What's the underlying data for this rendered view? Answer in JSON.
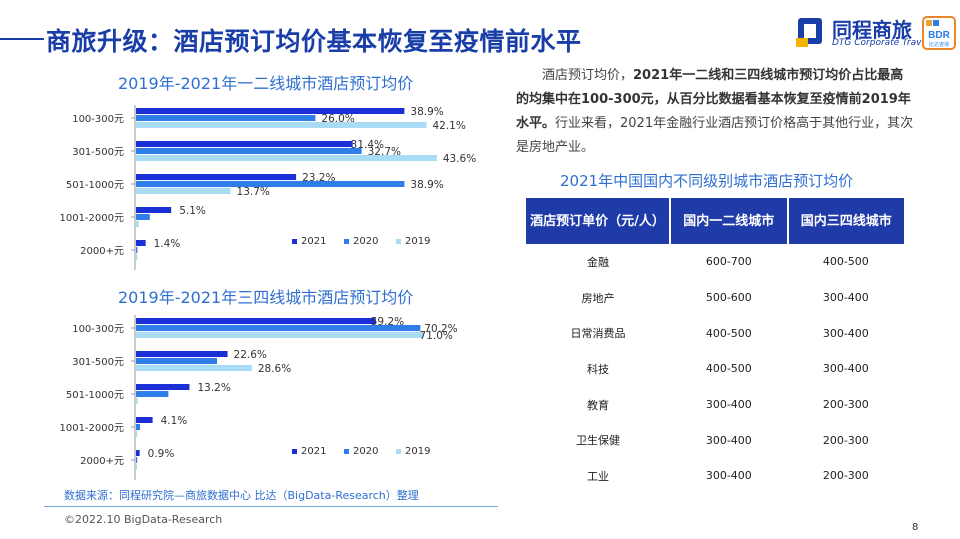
{
  "slide": {
    "title": "商旅升级：酒店预订均价基本恢复至疫情前水平",
    "logo_cn": "同程商旅",
    "logo_en": "DTG Corporate Travel",
    "logo_badge": "BDR",
    "logo_badge_sub": "比达咨询",
    "description_lead": "酒店预订均价，",
    "description_bold": "2021年一二线和三四线城市预订均价占比最高的均集中在100-300元，从百分比数据看基本恢复至疫情前2019年水平。",
    "description_tail": "行业来看，2021年金融行业酒店预订价格高于其他行业，其次是房地产业。",
    "source": "数据来源：同程研究院—商旅数据中心 比达（BigData-Research）整理",
    "copyright": "©2022.10 BigData-Research",
    "page_number": "8"
  },
  "colors": {
    "s2021": "#1b2fd6",
    "s2020": "#2d7ee8",
    "s2019": "#a8dcf5",
    "brand": "#1a3ea8"
  },
  "chart_data": [
    {
      "type": "bar",
      "orientation": "horizontal",
      "title": "2019年-2021年一二线城市酒店预订均价",
      "categories": [
        "100-300元",
        "301-500元",
        "501-1000元",
        "1001-2000元",
        "2000+元"
      ],
      "series": [
        {
          "name": "2021",
          "values": [
            38.9,
            31.4,
            23.2,
            5.1,
            1.4
          ]
        },
        {
          "name": "2020",
          "values": [
            26.0,
            32.7,
            38.9,
            2.0,
            0.2
          ]
        },
        {
          "name": "2019",
          "values": [
            42.1,
            43.6,
            13.7,
            0.4,
            0.2
          ]
        }
      ],
      "data_labels": [
        "38.9%",
        "26.0%",
        "42.1%",
        "31.4%",
        "32.7%",
        "43.6%",
        "23.2%",
        "38.9%",
        "13.7%",
        "5.1%",
        "1.4%"
      ],
      "legend_position": "bottom-right",
      "grid": false
    },
    {
      "type": "bar",
      "orientation": "horizontal",
      "title": "2019年-2021年三四线城市酒店预订均价",
      "categories": [
        "100-300元",
        "301-500元",
        "501-1000元",
        "1001-2000元",
        "2000+元"
      ],
      "series": [
        {
          "name": "2021",
          "values": [
            59.2,
            22.6,
            13.2,
            4.1,
            0.9
          ]
        },
        {
          "name": "2020",
          "values": [
            70.2,
            20.0,
            8.0,
            1.0,
            0.3
          ]
        },
        {
          "name": "2019",
          "values": [
            71.0,
            28.6,
            0.4,
            0.3,
            0.2
          ]
        }
      ],
      "data_labels": [
        "59.2%",
        "70.2%",
        "71.0%",
        "22.6%",
        "28.6%",
        "13.2%",
        "4.1%",
        "0.9%"
      ],
      "legend_position": "bottom-right",
      "grid": false
    },
    {
      "type": "table",
      "title": "2021年中国国内不同级别城市酒店预订均价",
      "columns": [
        "酒店预订单价（元/人）",
        "国内一二线城市",
        "国内三四线城市"
      ],
      "rows": [
        [
          "金融",
          "600-700",
          "400-500"
        ],
        [
          "房地产",
          "500-600",
          "300-400"
        ],
        [
          "日常消费品",
          "400-500",
          "300-400"
        ],
        [
          "科技",
          "400-500",
          "300-400"
        ],
        [
          "教育",
          "300-400",
          "200-300"
        ],
        [
          "卫生保健",
          "300-400",
          "200-300"
        ],
        [
          "工业",
          "300-400",
          "200-300"
        ]
      ]
    }
  ]
}
